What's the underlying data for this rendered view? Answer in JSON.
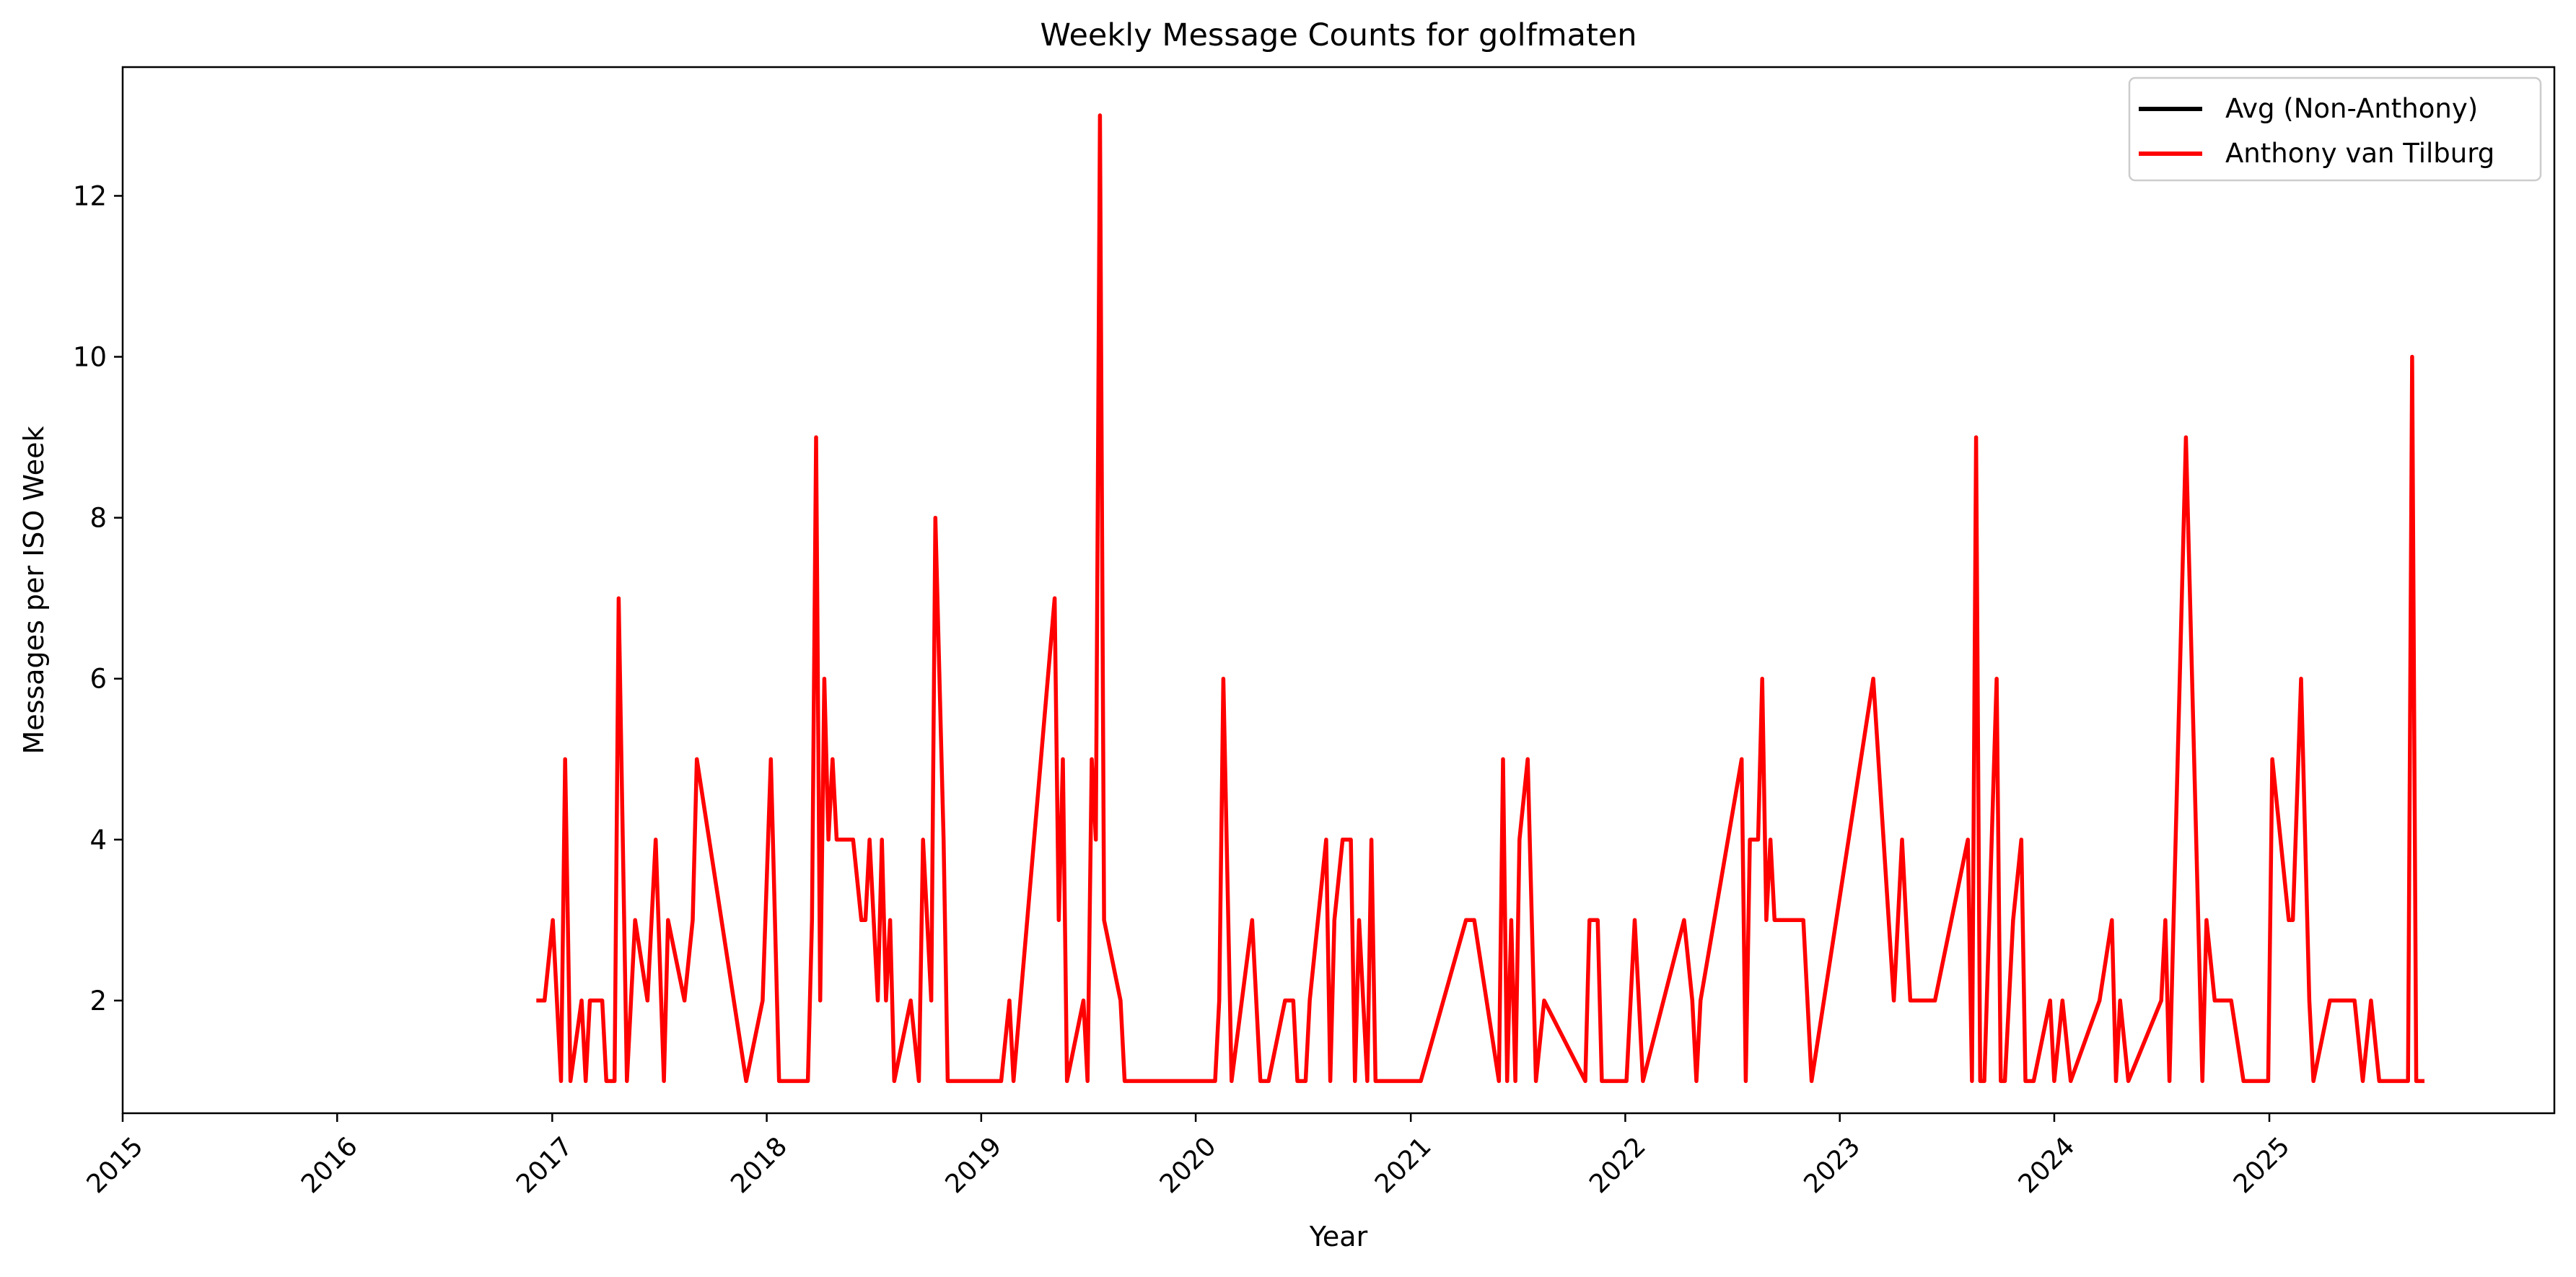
{
  "chart_data": {
    "type": "line",
    "title": "Weekly Message Counts for golfmaten",
    "xlabel": "Year",
    "ylabel": "Messages per ISO Week",
    "xlim": [
      "2015-01-01",
      "2026-05-01"
    ],
    "ylim": [
      0.6,
      13.6
    ],
    "x_ticks": [
      "2015",
      "2016",
      "2017",
      "2018",
      "2019",
      "2020",
      "2021",
      "2022",
      "2023",
      "2024",
      "2025"
    ],
    "y_ticks": [
      2,
      4,
      6,
      8,
      10,
      12
    ],
    "grid": false,
    "legend_position": "top-right",
    "series": [
      {
        "name": "Avg (Non-Anthony)",
        "color": "#000000",
        "points": []
      },
      {
        "name": "Anthony van Tilburg",
        "color": "#ff0000",
        "points": [
          [
            "2016-12-05",
            2
          ],
          [
            "2016-12-19",
            2
          ],
          [
            "2017-01-02",
            3
          ],
          [
            "2017-01-09",
            2
          ],
          [
            "2017-01-16",
            1
          ],
          [
            "2017-01-23",
            5
          ],
          [
            "2017-02-01",
            1
          ],
          [
            "2017-02-20",
            2
          ],
          [
            "2017-02-27",
            1
          ],
          [
            "2017-03-06",
            2
          ],
          [
            "2017-03-27",
            2
          ],
          [
            "2017-04-03",
            1
          ],
          [
            "2017-04-17",
            1
          ],
          [
            "2017-04-24",
            7
          ],
          [
            "2017-05-08",
            1
          ],
          [
            "2017-05-22",
            3
          ],
          [
            "2017-06-12",
            2
          ],
          [
            "2017-06-26",
            4
          ],
          [
            "2017-07-10",
            1
          ],
          [
            "2017-07-17",
            3
          ],
          [
            "2017-08-14",
            2
          ],
          [
            "2017-08-28",
            3
          ],
          [
            "2017-09-04",
            5
          ],
          [
            "2017-11-27",
            1
          ],
          [
            "2017-12-25",
            2
          ],
          [
            "2018-01-08",
            5
          ],
          [
            "2018-01-22",
            1
          ],
          [
            "2018-03-12",
            1
          ],
          [
            "2018-03-19",
            3
          ],
          [
            "2018-03-26",
            9
          ],
          [
            "2018-04-02",
            2
          ],
          [
            "2018-04-09",
            6
          ],
          [
            "2018-04-16",
            4
          ],
          [
            "2018-04-23",
            5
          ],
          [
            "2018-04-30",
            4
          ],
          [
            "2018-05-28",
            4
          ],
          [
            "2018-06-11",
            3
          ],
          [
            "2018-06-18",
            3
          ],
          [
            "2018-06-25",
            4
          ],
          [
            "2018-07-09",
            2
          ],
          [
            "2018-07-16",
            4
          ],
          [
            "2018-07-23",
            2
          ],
          [
            "2018-07-30",
            3
          ],
          [
            "2018-08-06",
            1
          ],
          [
            "2018-09-03",
            2
          ],
          [
            "2018-09-17",
            1
          ],
          [
            "2018-09-24",
            4
          ],
          [
            "2018-10-08",
            2
          ],
          [
            "2018-10-15",
            8
          ],
          [
            "2018-10-29",
            4
          ],
          [
            "2018-11-05",
            1
          ],
          [
            "2019-02-04",
            1
          ],
          [
            "2019-02-18",
            2
          ],
          [
            "2019-02-25",
            1
          ],
          [
            "2019-05-06",
            7
          ],
          [
            "2019-05-13",
            3
          ],
          [
            "2019-05-20",
            5
          ],
          [
            "2019-05-27",
            1
          ],
          [
            "2019-06-24",
            2
          ],
          [
            "2019-07-01",
            1
          ],
          [
            "2019-07-08",
            5
          ],
          [
            "2019-07-15",
            4
          ],
          [
            "2019-07-22",
            13
          ],
          [
            "2019-07-29",
            3
          ],
          [
            "2019-08-26",
            2
          ],
          [
            "2019-09-02",
            1
          ],
          [
            "2020-02-03",
            1
          ],
          [
            "2020-02-10",
            2
          ],
          [
            "2020-02-17",
            6
          ],
          [
            "2020-03-02",
            1
          ],
          [
            "2020-04-06",
            3
          ],
          [
            "2020-04-20",
            1
          ],
          [
            "2020-05-04",
            1
          ],
          [
            "2020-06-01",
            2
          ],
          [
            "2020-06-15",
            2
          ],
          [
            "2020-06-22",
            1
          ],
          [
            "2020-07-06",
            1
          ],
          [
            "2020-07-13",
            2
          ],
          [
            "2020-08-10",
            4
          ],
          [
            "2020-08-17",
            1
          ],
          [
            "2020-08-24",
            3
          ],
          [
            "2020-09-07",
            4
          ],
          [
            "2020-09-21",
            4
          ],
          [
            "2020-09-28",
            1
          ],
          [
            "2020-10-05",
            3
          ],
          [
            "2020-10-19",
            1
          ],
          [
            "2020-10-26",
            4
          ],
          [
            "2020-11-02",
            1
          ],
          [
            "2021-01-18",
            1
          ],
          [
            "2021-04-05",
            3
          ],
          [
            "2021-04-19",
            3
          ],
          [
            "2021-05-31",
            1
          ],
          [
            "2021-06-07",
            5
          ],
          [
            "2021-06-14",
            1
          ],
          [
            "2021-06-21",
            3
          ],
          [
            "2021-06-28",
            1
          ],
          [
            "2021-07-05",
            4
          ],
          [
            "2021-07-19",
            5
          ],
          [
            "2021-08-02",
            1
          ],
          [
            "2021-08-16",
            2
          ],
          [
            "2021-10-25",
            1
          ],
          [
            "2021-11-01",
            3
          ],
          [
            "2021-11-15",
            3
          ],
          [
            "2021-11-22",
            1
          ],
          [
            "2021-11-29",
            1
          ],
          [
            "2022-01-03",
            1
          ],
          [
            "2022-01-17",
            3
          ],
          [
            "2022-01-31",
            1
          ],
          [
            "2022-04-11",
            3
          ],
          [
            "2022-04-25",
            2
          ],
          [
            "2022-05-02",
            1
          ],
          [
            "2022-05-09",
            2
          ],
          [
            "2022-07-18",
            5
          ],
          [
            "2022-07-25",
            1
          ],
          [
            "2022-08-01",
            4
          ],
          [
            "2022-08-15",
            4
          ],
          [
            "2022-08-22",
            6
          ],
          [
            "2022-08-29",
            3
          ],
          [
            "2022-09-05",
            4
          ],
          [
            "2022-09-12",
            3
          ],
          [
            "2022-10-31",
            3
          ],
          [
            "2022-11-14",
            1
          ],
          [
            "2023-02-27",
            6
          ],
          [
            "2023-04-03",
            2
          ],
          [
            "2023-04-17",
            4
          ],
          [
            "2023-05-01",
            2
          ],
          [
            "2023-06-12",
            2
          ],
          [
            "2023-08-07",
            4
          ],
          [
            "2023-08-14",
            1
          ],
          [
            "2023-08-21",
            9
          ],
          [
            "2023-08-28",
            1
          ],
          [
            "2023-09-04",
            1
          ],
          [
            "2023-09-25",
            6
          ],
          [
            "2023-10-02",
            1
          ],
          [
            "2023-10-09",
            1
          ],
          [
            "2023-10-23",
            3
          ],
          [
            "2023-11-06",
            4
          ],
          [
            "2023-11-13",
            1
          ],
          [
            "2023-11-27",
            1
          ],
          [
            "2023-12-25",
            2
          ],
          [
            "2024-01-01",
            1
          ],
          [
            "2024-01-15",
            2
          ],
          [
            "2024-01-29",
            1
          ],
          [
            "2024-03-18",
            2
          ],
          [
            "2024-04-08",
            3
          ],
          [
            "2024-04-15",
            1
          ],
          [
            "2024-04-22",
            2
          ],
          [
            "2024-05-06",
            1
          ],
          [
            "2024-07-01",
            2
          ],
          [
            "2024-07-08",
            3
          ],
          [
            "2024-07-15",
            1
          ],
          [
            "2024-08-12",
            9
          ],
          [
            "2024-09-09",
            1
          ],
          [
            "2024-09-16",
            3
          ],
          [
            "2024-09-30",
            2
          ],
          [
            "2024-10-28",
            2
          ],
          [
            "2024-11-18",
            1
          ],
          [
            "2024-12-30",
            1
          ],
          [
            "2025-01-06",
            5
          ],
          [
            "2025-02-03",
            3
          ],
          [
            "2025-02-10",
            3
          ],
          [
            "2025-02-24",
            6
          ],
          [
            "2025-03-10",
            2
          ],
          [
            "2025-03-17",
            1
          ],
          [
            "2025-04-14",
            2
          ],
          [
            "2025-05-26",
            2
          ],
          [
            "2025-06-09",
            1
          ],
          [
            "2025-06-23",
            2
          ],
          [
            "2025-07-07",
            1
          ],
          [
            "2025-08-25",
            1
          ],
          [
            "2025-09-01",
            10
          ],
          [
            "2025-09-08",
            1
          ],
          [
            "2025-09-15",
            1
          ],
          [
            "2025-09-22",
            1
          ]
        ]
      }
    ]
  }
}
